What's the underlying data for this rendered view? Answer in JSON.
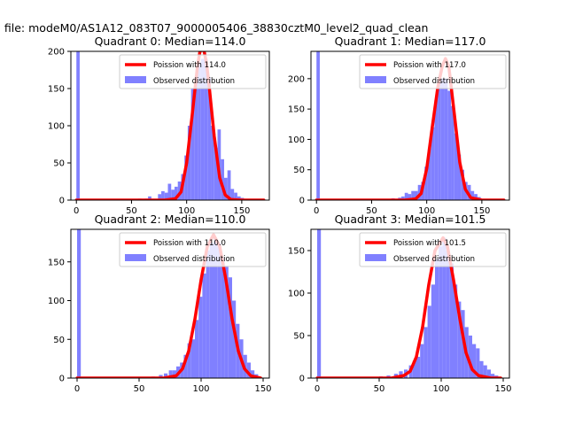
{
  "figure": {
    "suptitle": "n file: modeM0/AS1A12_083T07_9000005406_38830cztM0_level2_quad_clean"
  },
  "colors": {
    "histogram": "#8080ff",
    "poisson": "#ff0000",
    "axis": "#000000"
  },
  "chart_data": [
    {
      "type": "bar",
      "overlay": "line",
      "title": "Quadrant 0: Median=114.0",
      "xlim": [
        -5,
        175
      ],
      "ylim": [
        0,
        200
      ],
      "xticks": [
        0,
        50,
        100,
        150
      ],
      "yticks": [
        0,
        50,
        100,
        150,
        200
      ],
      "grid": false,
      "legend": "top-right",
      "series": [
        {
          "name": "Poission with 114.0",
          "type": "line",
          "mean": 114.0,
          "x": [
            0,
            80,
            90,
            95,
            100,
            105,
            110,
            112,
            114,
            116,
            118,
            120,
            125,
            130,
            135,
            140,
            150,
            170
          ],
          "y": [
            0,
            0,
            2,
            11,
            50,
            114,
            182,
            199,
            204,
            199,
            184,
            159,
            86,
            30,
            7,
            1,
            0,
            0
          ]
        },
        {
          "name": "Observed distribution",
          "type": "bar",
          "bin_width": 3,
          "x": [
            0,
            56,
            62,
            65,
            74,
            77,
            80,
            83,
            86,
            89,
            92,
            95,
            98,
            101,
            104,
            107,
            110,
            113,
            116,
            119,
            122,
            125,
            128,
            131,
            134,
            137,
            140,
            143,
            146,
            149
          ],
          "y": [
            200,
            2,
            2,
            5,
            8,
            12,
            10,
            22,
            14,
            18,
            25,
            35,
            60,
            100,
            150,
            165,
            185,
            190,
            190,
            165,
            100,
            70,
            95,
            55,
            30,
            40,
            15,
            10,
            5,
            3
          ]
        }
      ]
    },
    {
      "type": "bar",
      "overlay": "line",
      "title": "Quadrant 1: Median=117.0",
      "xlim": [
        -5,
        175
      ],
      "ylim": [
        0,
        245
      ],
      "xticks": [
        0,
        50,
        100,
        150
      ],
      "yticks": [
        0,
        50,
        100,
        150,
        200
      ],
      "grid": false,
      "legend": "top-right",
      "series": [
        {
          "name": "Poission with 117.0",
          "type": "line",
          "mean": 117.0,
          "x": [
            0,
            80,
            90,
            95,
            100,
            105,
            110,
            114,
            117,
            120,
            125,
            130,
            135,
            140,
            150,
            170
          ],
          "y": [
            0,
            0,
            2,
            11,
            52,
            120,
            185,
            220,
            233,
            220,
            142,
            62,
            18,
            4,
            0,
            0
          ]
        },
        {
          "name": "Observed distribution",
          "type": "bar",
          "bin_width": 3,
          "x": [
            0,
            60,
            68,
            74,
            77,
            80,
            83,
            86,
            89,
            92,
            95,
            98,
            101,
            104,
            107,
            110,
            113,
            116,
            119,
            122,
            125,
            128,
            131,
            134,
            137,
            140,
            143,
            146,
            149
          ],
          "y": [
            245,
            2,
            3,
            4,
            6,
            12,
            10,
            15,
            15,
            25,
            30,
            55,
            85,
            120,
            165,
            195,
            200,
            200,
            180,
            155,
            110,
            75,
            50,
            30,
            25,
            15,
            10,
            5,
            2
          ]
        }
      ]
    },
    {
      "type": "bar",
      "overlay": "line",
      "title": "Quadrant 2: Median=110.0",
      "xlim": [
        -5,
        155
      ],
      "ylim": [
        0,
        192
      ],
      "xticks": [
        0,
        50,
        100,
        150
      ],
      "yticks": [
        0,
        50,
        100,
        150
      ],
      "grid": false,
      "legend": "top-right",
      "series": [
        {
          "name": "Poission with 110.0",
          "type": "line",
          "mean": 110.0,
          "x": [
            0,
            70,
            80,
            85,
            90,
            95,
            100,
            105,
            110,
            115,
            120,
            125,
            130,
            135,
            140,
            148
          ],
          "y": [
            0,
            0,
            3,
            12,
            35,
            76,
            127,
            170,
            185,
            170,
            127,
            76,
            35,
            12,
            3,
            0
          ]
        },
        {
          "name": "Observed distribution",
          "type": "bar",
          "bin_width": 3,
          "x": [
            0,
            60,
            66,
            70,
            74,
            77,
            80,
            83,
            86,
            89,
            92,
            95,
            98,
            101,
            104,
            107,
            110,
            113,
            116,
            119,
            122,
            125,
            128,
            131,
            134,
            137,
            140,
            143
          ],
          "y": [
            192,
            2,
            4,
            6,
            10,
            10,
            15,
            20,
            30,
            45,
            50,
            75,
            105,
            135,
            165,
            175,
            180,
            175,
            155,
            145,
            130,
            100,
            70,
            50,
            30,
            20,
            10,
            5
          ]
        }
      ]
    },
    {
      "type": "bar",
      "overlay": "line",
      "title": "Quadrant 3: Median=101.5",
      "xlim": [
        -5,
        155
      ],
      "ylim": [
        0,
        175
      ],
      "xticks": [
        0,
        50,
        100,
        150
      ],
      "yticks": [
        0,
        50,
        100,
        150
      ],
      "grid": false,
      "legend": "top-right",
      "series": [
        {
          "name": "Poission with 101.5",
          "type": "line",
          "mean": 101.5,
          "x": [
            0,
            60,
            70,
            75,
            80,
            85,
            90,
            95,
            101.5,
            105,
            110,
            115,
            120,
            125,
            130,
            140,
            148
          ],
          "y": [
            0,
            0,
            3,
            8,
            25,
            60,
            110,
            150,
            165,
            155,
            115,
            70,
            30,
            10,
            3,
            0,
            0
          ]
        },
        {
          "name": "Observed distribution",
          "type": "bar",
          "bin_width": 3,
          "x": [
            0,
            50,
            56,
            62,
            66,
            70,
            74,
            77,
            80,
            83,
            86,
            89,
            92,
            95,
            98,
            101,
            104,
            107,
            110,
            113,
            116,
            119,
            122,
            125,
            128,
            131,
            134,
            137,
            140,
            143
          ],
          "y": [
            175,
            2,
            3,
            5,
            8,
            10,
            15,
            20,
            25,
            40,
            60,
            85,
            110,
            140,
            155,
            165,
            150,
            135,
            110,
            90,
            80,
            60,
            50,
            40,
            35,
            20,
            15,
            10,
            5,
            3
          ]
        }
      ]
    }
  ]
}
